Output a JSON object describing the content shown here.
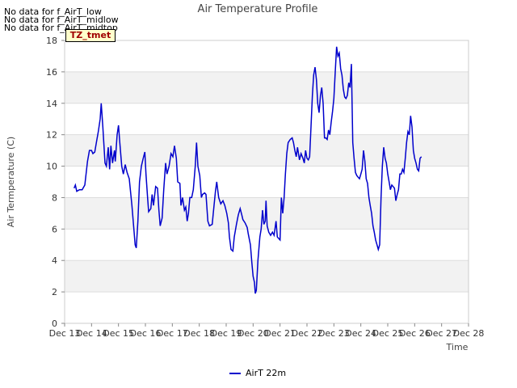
{
  "chart_data": {
    "type": "line",
    "title": "Air Temperature Profile",
    "xlabel": "Time",
    "ylabel": "Air Termperature (C)",
    "ylim": [
      0,
      18
    ],
    "xlim": [
      0,
      15
    ],
    "yticks": [
      0,
      2,
      4,
      6,
      8,
      10,
      12,
      14,
      16,
      18
    ],
    "xtick_labels": [
      "Dec 13",
      "Dec 14",
      "Dec 15",
      "Dec 16",
      "Dec 17",
      "Dec 18",
      "Dec 19",
      "Dec 20",
      "Dec 21",
      "Dec 22",
      "Dec 23",
      "Dec 24",
      "Dec 25",
      "Dec 26",
      "Dec 27",
      "Dec 28"
    ],
    "legend_position": "bottom-center",
    "series": [
      {
        "name": "AirT 22m",
        "color": "#0000cc",
        "points": [
          [
            0.35,
            8.6
          ],
          [
            0.4,
            8.8
          ],
          [
            0.45,
            8.4
          ],
          [
            0.55,
            8.5
          ],
          [
            0.65,
            8.5
          ],
          [
            0.75,
            8.8
          ],
          [
            0.85,
            10.3
          ],
          [
            0.92,
            11.0
          ],
          [
            1.0,
            11.0
          ],
          [
            1.05,
            10.8
          ],
          [
            1.12,
            10.9
          ],
          [
            1.18,
            11.5
          ],
          [
            1.25,
            12.2
          ],
          [
            1.32,
            13.0
          ],
          [
            1.36,
            14.0
          ],
          [
            1.42,
            12.5
          ],
          [
            1.5,
            10.2
          ],
          [
            1.55,
            10.0
          ],
          [
            1.62,
            11.2
          ],
          [
            1.67,
            9.8
          ],
          [
            1.72,
            11.3
          ],
          [
            1.78,
            10.2
          ],
          [
            1.85,
            11.0
          ],
          [
            1.88,
            10.3
          ],
          [
            1.95,
            12.0
          ],
          [
            2.0,
            12.6
          ],
          [
            2.05,
            11.5
          ],
          [
            2.12,
            10.0
          ],
          [
            2.18,
            9.5
          ],
          [
            2.25,
            10.1
          ],
          [
            2.32,
            9.6
          ],
          [
            2.4,
            9.2
          ],
          [
            2.5,
            7.5
          ],
          [
            2.57,
            6.0
          ],
          [
            2.62,
            5.0
          ],
          [
            2.66,
            4.8
          ],
          [
            2.72,
            6.5
          ],
          [
            2.78,
            9.0
          ],
          [
            2.85,
            10.0
          ],
          [
            2.92,
            10.5
          ],
          [
            2.98,
            10.9
          ],
          [
            3.02,
            9.5
          ],
          [
            3.08,
            8.0
          ],
          [
            3.12,
            7.1
          ],
          [
            3.2,
            7.3
          ],
          [
            3.25,
            8.2
          ],
          [
            3.3,
            7.5
          ],
          [
            3.38,
            8.7
          ],
          [
            3.45,
            8.6
          ],
          [
            3.5,
            7.2
          ],
          [
            3.55,
            6.2
          ],
          [
            3.62,
            6.7
          ],
          [
            3.68,
            8.5
          ],
          [
            3.75,
            10.2
          ],
          [
            3.8,
            9.5
          ],
          [
            3.88,
            10.0
          ],
          [
            3.95,
            10.8
          ],
          [
            4.02,
            10.6
          ],
          [
            4.08,
            11.3
          ],
          [
            4.15,
            10.5
          ],
          [
            4.2,
            9.0
          ],
          [
            4.28,
            8.9
          ],
          [
            4.32,
            7.5
          ],
          [
            4.38,
            8.0
          ],
          [
            4.45,
            7.2
          ],
          [
            4.5,
            7.4
          ],
          [
            4.55,
            6.5
          ],
          [
            4.6,
            7.0
          ],
          [
            4.65,
            8.0
          ],
          [
            4.72,
            8.0
          ],
          [
            4.78,
            8.5
          ],
          [
            4.85,
            10.0
          ],
          [
            4.9,
            11.5
          ],
          [
            4.95,
            10.0
          ],
          [
            5.02,
            9.4
          ],
          [
            5.08,
            8.0
          ],
          [
            5.12,
            8.2
          ],
          [
            5.2,
            8.3
          ],
          [
            5.25,
            8.2
          ],
          [
            5.32,
            6.5
          ],
          [
            5.38,
            6.2
          ],
          [
            5.48,
            6.3
          ],
          [
            5.52,
            7.0
          ],
          [
            5.6,
            8.4
          ],
          [
            5.65,
            9.0
          ],
          [
            5.72,
            8.0
          ],
          [
            5.8,
            7.6
          ],
          [
            5.88,
            7.8
          ],
          [
            5.95,
            7.5
          ],
          [
            6.02,
            7.0
          ],
          [
            6.08,
            6.4
          ],
          [
            6.12,
            5.5
          ],
          [
            6.18,
            4.7
          ],
          [
            6.25,
            4.6
          ],
          [
            6.3,
            5.5
          ],
          [
            6.38,
            6.3
          ],
          [
            6.45,
            6.9
          ],
          [
            6.52,
            7.3
          ],
          [
            6.58,
            6.9
          ],
          [
            6.62,
            6.6
          ],
          [
            6.7,
            6.4
          ],
          [
            6.78,
            6.1
          ],
          [
            6.82,
            5.7
          ],
          [
            6.9,
            5.0
          ],
          [
            6.95,
            3.9
          ],
          [
            7.0,
            3.0
          ],
          [
            7.05,
            2.6
          ],
          [
            7.08,
            1.9
          ],
          [
            7.12,
            2.1
          ],
          [
            7.18,
            4.0
          ],
          [
            7.25,
            5.5
          ],
          [
            7.3,
            6.0
          ],
          [
            7.35,
            7.2
          ],
          [
            7.4,
            6.3
          ],
          [
            7.45,
            6.5
          ],
          [
            7.48,
            7.8
          ],
          [
            7.52,
            6.2
          ],
          [
            7.58,
            5.8
          ],
          [
            7.65,
            5.6
          ],
          [
            7.72,
            5.8
          ],
          [
            7.78,
            5.6
          ],
          [
            7.85,
            6.5
          ],
          [
            7.9,
            5.5
          ],
          [
            7.95,
            5.4
          ],
          [
            8.0,
            5.3
          ],
          [
            8.05,
            8.0
          ],
          [
            8.1,
            7.0
          ],
          [
            8.15,
            8.0
          ],
          [
            8.2,
            9.5
          ],
          [
            8.25,
            10.8
          ],
          [
            8.3,
            11.5
          ],
          [
            8.38,
            11.7
          ],
          [
            8.45,
            11.8
          ],
          [
            8.5,
            11.5
          ],
          [
            8.55,
            11.0
          ],
          [
            8.6,
            10.6
          ],
          [
            8.65,
            11.2
          ],
          [
            8.72,
            10.4
          ],
          [
            8.78,
            10.8
          ],
          [
            8.85,
            10.5
          ],
          [
            8.9,
            10.2
          ],
          [
            8.95,
            11.0
          ],
          [
            9.0,
            10.5
          ],
          [
            9.05,
            10.4
          ],
          [
            9.1,
            10.6
          ],
          [
            9.15,
            12.5
          ],
          [
            9.2,
            14.5
          ],
          [
            9.25,
            15.8
          ],
          [
            9.3,
            16.3
          ],
          [
            9.35,
            15.5
          ],
          [
            9.4,
            14.0
          ],
          [
            9.45,
            13.4
          ],
          [
            9.5,
            14.5
          ],
          [
            9.55,
            15.0
          ],
          [
            9.6,
            14.0
          ],
          [
            9.65,
            11.8
          ],
          [
            9.7,
            11.8
          ],
          [
            9.75,
            11.7
          ],
          [
            9.8,
            12.3
          ],
          [
            9.85,
            12.0
          ],
          [
            9.9,
            12.8
          ],
          [
            9.95,
            13.5
          ],
          [
            10.0,
            14.3
          ],
          [
            10.05,
            16.0
          ],
          [
            10.1,
            17.6
          ],
          [
            10.15,
            17.0
          ],
          [
            10.2,
            17.2
          ],
          [
            10.25,
            16.2
          ],
          [
            10.3,
            15.8
          ],
          [
            10.35,
            14.9
          ],
          [
            10.4,
            14.4
          ],
          [
            10.45,
            14.3
          ],
          [
            10.5,
            14.5
          ],
          [
            10.55,
            15.3
          ],
          [
            10.6,
            15.0
          ],
          [
            10.65,
            16.5
          ],
          [
            10.7,
            11.5
          ],
          [
            10.75,
            10.5
          ],
          [
            10.8,
            9.6
          ],
          [
            10.85,
            9.4
          ],
          [
            10.9,
            9.3
          ],
          [
            10.95,
            9.2
          ],
          [
            11.0,
            9.5
          ],
          [
            11.05,
            9.8
          ],
          [
            11.1,
            11.0
          ],
          [
            11.15,
            10.3
          ],
          [
            11.2,
            9.2
          ],
          [
            11.25,
            8.9
          ],
          [
            11.3,
            8.0
          ],
          [
            11.35,
            7.5
          ],
          [
            11.4,
            7.0
          ],
          [
            11.45,
            6.2
          ],
          [
            11.5,
            5.8
          ],
          [
            11.55,
            5.3
          ],
          [
            11.6,
            5.0
          ],
          [
            11.65,
            4.7
          ],
          [
            11.7,
            5.0
          ],
          [
            11.75,
            8.0
          ],
          [
            11.8,
            10.0
          ],
          [
            11.85,
            11.2
          ],
          [
            11.9,
            10.5
          ],
          [
            11.95,
            10.2
          ],
          [
            12.0,
            9.5
          ],
          [
            12.05,
            9.0
          ],
          [
            12.1,
            8.5
          ],
          [
            12.15,
            8.8
          ],
          [
            12.2,
            8.7
          ],
          [
            12.25,
            8.6
          ],
          [
            12.3,
            7.8
          ],
          [
            12.35,
            8.2
          ],
          [
            12.4,
            8.5
          ],
          [
            12.45,
            9.5
          ],
          [
            12.5,
            9.5
          ],
          [
            12.55,
            9.8
          ],
          [
            12.6,
            9.6
          ],
          [
            12.65,
            10.5
          ],
          [
            12.7,
            11.5
          ],
          [
            12.75,
            12.2
          ],
          [
            12.8,
            12.0
          ],
          [
            12.85,
            13.2
          ],
          [
            12.9,
            12.5
          ],
          [
            12.95,
            11.0
          ],
          [
            13.0,
            10.5
          ],
          [
            13.05,
            10.2
          ],
          [
            13.1,
            9.8
          ],
          [
            13.15,
            9.7
          ],
          [
            13.2,
            10.5
          ],
          [
            13.25,
            10.6
          ]
        ]
      }
    ]
  },
  "notes": {
    "nodata_low": "No data for f_AirT_low",
    "nodata_midlow": "No data for f_AirT_midlow",
    "nodata_midtop": "No data for f_AirT_midtop",
    "tz_label": "TZ_tmet"
  },
  "legend": {
    "label": "AirT 22m",
    "color": "#0000cc"
  }
}
